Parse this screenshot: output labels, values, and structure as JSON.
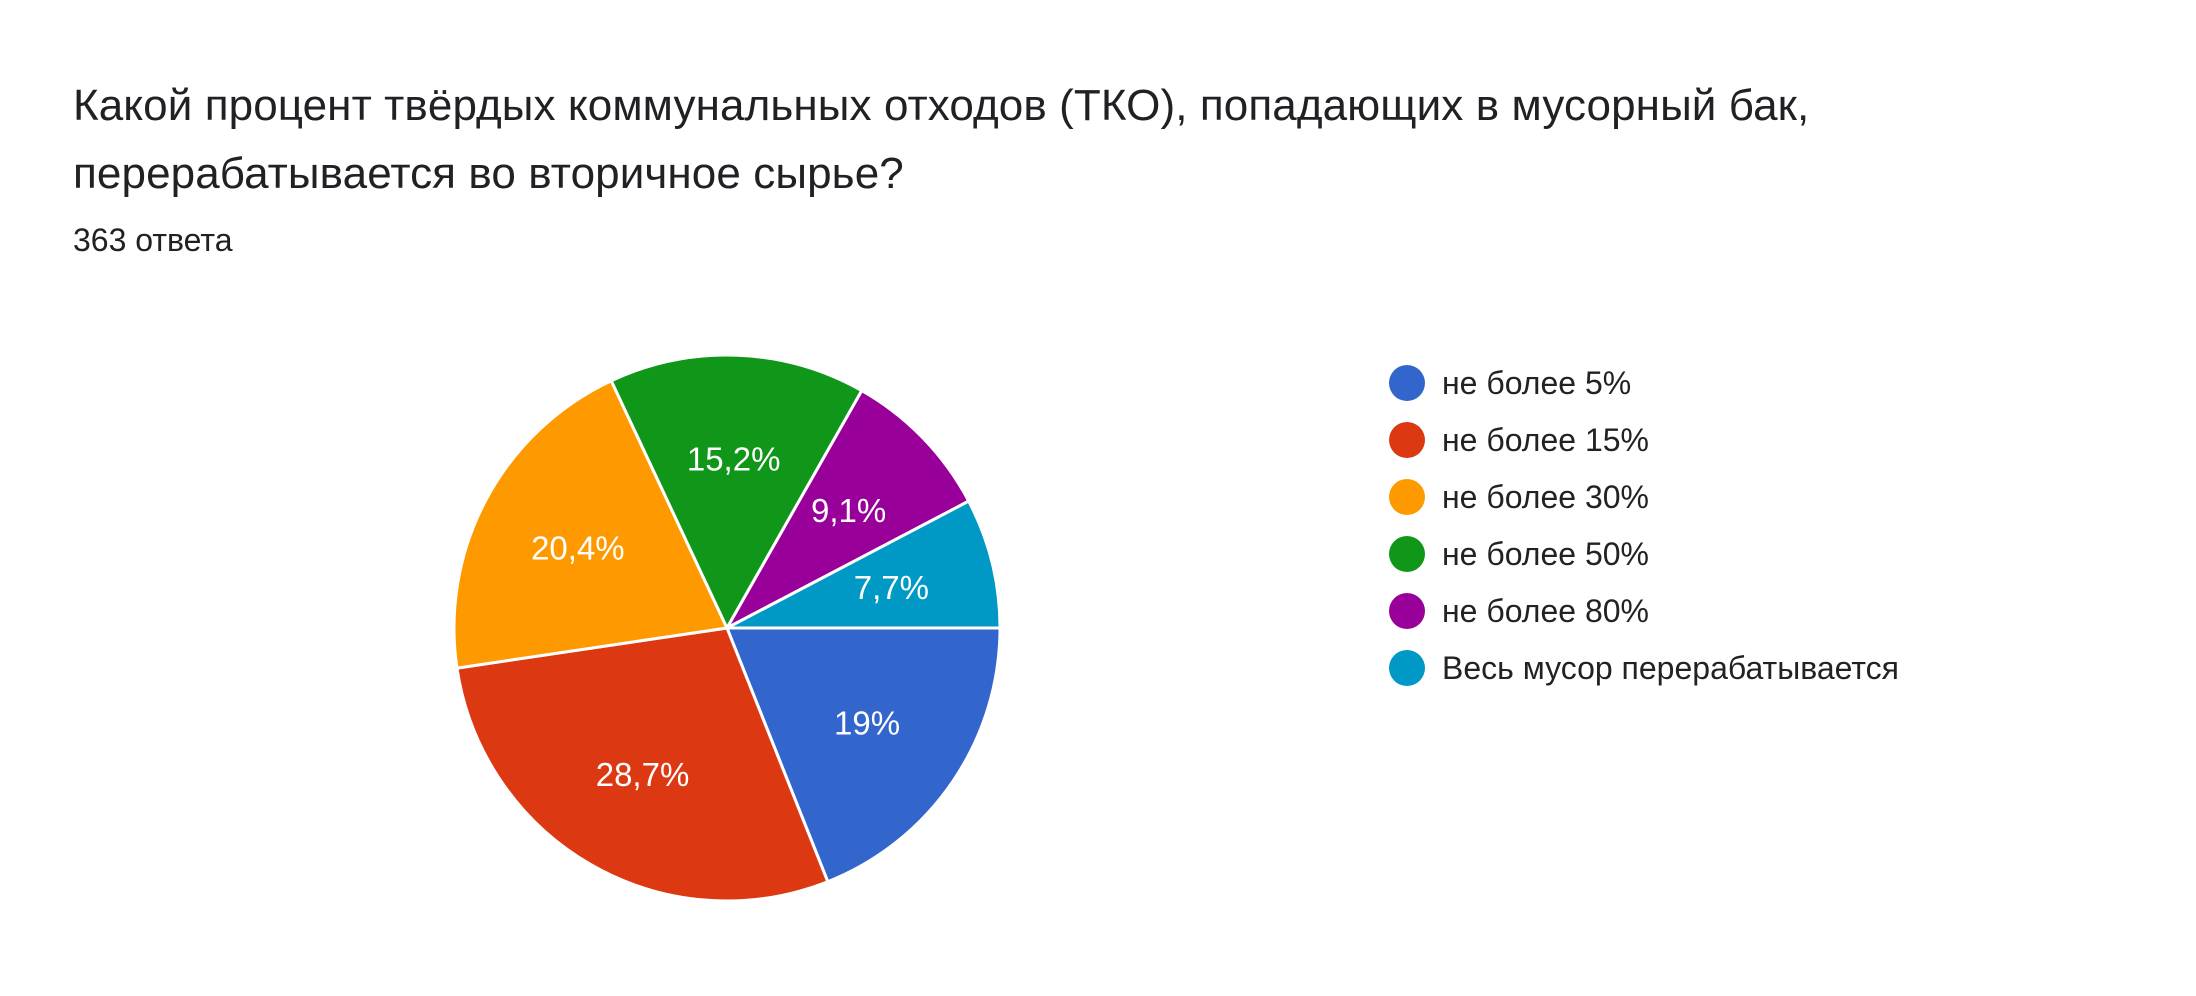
{
  "question": {
    "title_lines": [
      "Какой процент твёрдых коммунальных отходов (ТКО), попадающих в мусорный бак,",
      "перерабатывается во вторичное сырье?"
    ],
    "response_count": "363 ответа"
  },
  "chart_data": {
    "type": "pie",
    "title": "Какой процент твёрдых коммунальных отходов (ТКО), попадающих в мусорный бак, перерабатывается во вторичное сырье?",
    "subtitle": "363 ответа",
    "total_responses": 363,
    "categories": [
      "не более 5%",
      "не более 15%",
      "не более 30%",
      "не более 50%",
      "не более 80%",
      "Весь мусор перерабатывается"
    ],
    "values": [
      19.0,
      28.7,
      20.4,
      15.2,
      9.1,
      7.7
    ],
    "labels": [
      "19%",
      "28,7%",
      "20,4%",
      "15,2%",
      "9,1%",
      "7,7%"
    ],
    "colors": [
      "#3366CC",
      "#DC3912",
      "#FF9900",
      "#109618",
      "#990099",
      "#0099C6"
    ],
    "start_angle": "3 o'clock, clockwise",
    "legend_position": "right",
    "center": [
      727,
      628
    ],
    "radius": 273
  },
  "legend": {
    "items": [
      {
        "label": "не более 5%",
        "color": "#3366CC"
      },
      {
        "label": "не более 15%",
        "color": "#DC3912"
      },
      {
        "label": "не более 30%",
        "color": "#FF9900"
      },
      {
        "label": "не более 50%",
        "color": "#109618"
      },
      {
        "label": "не более 80%",
        "color": "#990099"
      },
      {
        "label": "Весь мусор перерабатывается",
        "color": "#0099C6"
      }
    ]
  }
}
